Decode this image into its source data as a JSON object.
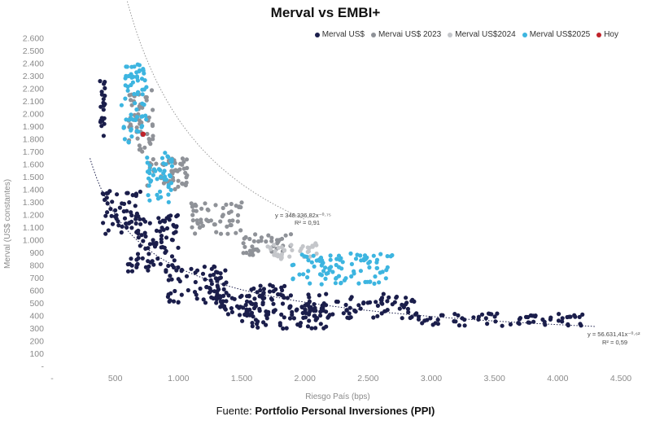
{
  "chart_data": {
    "type": "scatter",
    "title": "Merval vs EMBI+",
    "xlabel": "Riesgo País (bps)",
    "ylabel": "Merval (US$ constantes)",
    "xlim": [
      0,
      4500
    ],
    "ylim": [
      0,
      2600
    ],
    "x_ticks": [
      "-",
      "500",
      "1.000",
      "1.500",
      "2.000",
      "2.500",
      "3.000",
      "3.500",
      "4.000",
      "4.500"
    ],
    "y_ticks": [
      "-",
      "100",
      "200",
      "300",
      "400",
      "500",
      "600",
      "700",
      "800",
      "900",
      "1.000",
      "1.100",
      "1.200",
      "1.300",
      "1.400",
      "1.500",
      "1.600",
      "1.700",
      "1.800",
      "1.900",
      "2.000",
      "2.100",
      "2.200",
      "2.300",
      "2.400",
      "2.500",
      "2.600"
    ],
    "grid": false,
    "legend_position": "top-right",
    "series": [
      {
        "name": "Merval US$",
        "color": "#1b1e4b",
        "clusters": [
          {
            "x": [
              380,
              420
            ],
            "y": [
              1800,
              2300
            ]
          },
          {
            "x": [
              400,
              700
            ],
            "y": [
              1050,
              1400
            ]
          },
          {
            "x": [
              600,
              1000
            ],
            "y": [
              750,
              1200
            ]
          },
          {
            "x": [
              900,
              1400
            ],
            "y": [
              500,
              800
            ]
          },
          {
            "x": [
              1300,
              1900
            ],
            "y": [
              400,
              650
            ]
          },
          {
            "x": [
              1500,
              2200
            ],
            "y": [
              300,
              500
            ]
          },
          {
            "x": [
              2000,
              2900
            ],
            "y": [
              380,
              580
            ]
          },
          {
            "x": [
              2900,
              4250
            ],
            "y": [
              320,
              420
            ]
          }
        ]
      },
      {
        "name": "Mervai US$ 2023",
        "color": "#8f9298",
        "clusters": [
          {
            "x": [
              600,
              800
            ],
            "y": [
              1700,
              2200
            ]
          },
          {
            "x": [
              750,
              1100
            ],
            "y": [
              1400,
              1650
            ]
          },
          {
            "x": [
              1100,
              1500
            ],
            "y": [
              1050,
              1300
            ]
          },
          {
            "x": [
              1500,
              1900
            ],
            "y": [
              880,
              1050
            ]
          }
        ]
      },
      {
        "name": "Merval US$2024",
        "color": "#c4c6ca",
        "clusters": [
          {
            "x": [
              1700,
              2100
            ],
            "y": [
              850,
              980
            ]
          }
        ]
      },
      {
        "name": "Merval US$2025",
        "color": "#3db5e0",
        "clusters": [
          {
            "x": [
              550,
              750
            ],
            "y": [
              1750,
              2400
            ]
          },
          {
            "x": [
              750,
              950
            ],
            "y": [
              1300,
              1700
            ]
          },
          {
            "x": [
              1900,
              2700
            ],
            "y": [
              650,
              900
            ]
          }
        ]
      },
      {
        "name": "Hoy",
        "color": "#c0222a",
        "x": [
          720
        ],
        "y": [
          1840
        ]
      }
    ],
    "trendlines": [
      {
        "equation": "y = 348.336,82x⁻⁰·⁷⁵",
        "r2": "R² = 0,91",
        "coef": 348336.82,
        "exp": -0.75,
        "x_range": [
          550,
          2000
        ]
      },
      {
        "equation": "y = 56.631,41x⁻⁰·⁶²",
        "r2": "R² = 0,59",
        "coef": 56631.41,
        "exp": -0.62,
        "x_range": [
          300,
          4300
        ]
      }
    ]
  },
  "footer": {
    "prefix": "Fuente: ",
    "source": "Portfolio Personal Inversiones (PPI)"
  }
}
